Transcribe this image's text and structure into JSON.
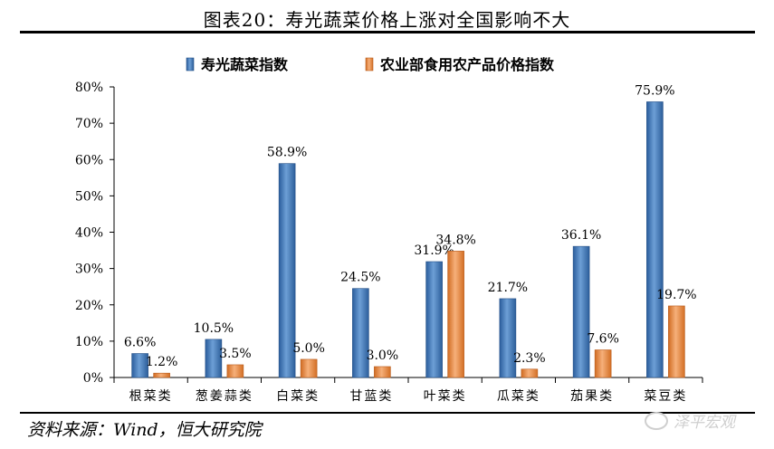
{
  "title": "图表20：寿光蔬菜价格上涨对全国影响不大",
  "source": "资料来源：Wind，恒大研究院",
  "watermark": "泽平宏观",
  "chart_data": {
    "type": "bar",
    "categories": [
      "根菜类",
      "葱姜蒜类",
      "白菜类",
      "甘蓝类",
      "叶菜类",
      "瓜菜类",
      "茄果类",
      "菜豆类"
    ],
    "series": [
      {
        "name": "寿光蔬菜指数",
        "values": [
          6.6,
          10.5,
          58.9,
          24.5,
          31.9,
          21.7,
          36.1,
          75.9
        ],
        "labels": [
          "6.6%",
          "10.5%",
          "58.9%",
          "24.5%",
          "31.9%",
          "21.7%",
          "36.1%",
          "75.9%"
        ],
        "color": "#3a6faf"
      },
      {
        "name": "农业部食用农产品价格指数",
        "values": [
          1.2,
          3.5,
          5.0,
          3.0,
          34.8,
          2.3,
          7.6,
          19.7
        ],
        "labels": [
          "1.2%",
          "3.5%",
          "5.0%",
          "3.0%",
          "34.8%",
          "2.3%",
          "7.6%",
          "19.7%"
        ],
        "color": "#e8873a"
      }
    ],
    "yticks": [
      "0%",
      "10%",
      "20%",
      "30%",
      "40%",
      "50%",
      "60%",
      "70%",
      "80%"
    ],
    "ylim": [
      0,
      80
    ],
    "legend": "top"
  }
}
